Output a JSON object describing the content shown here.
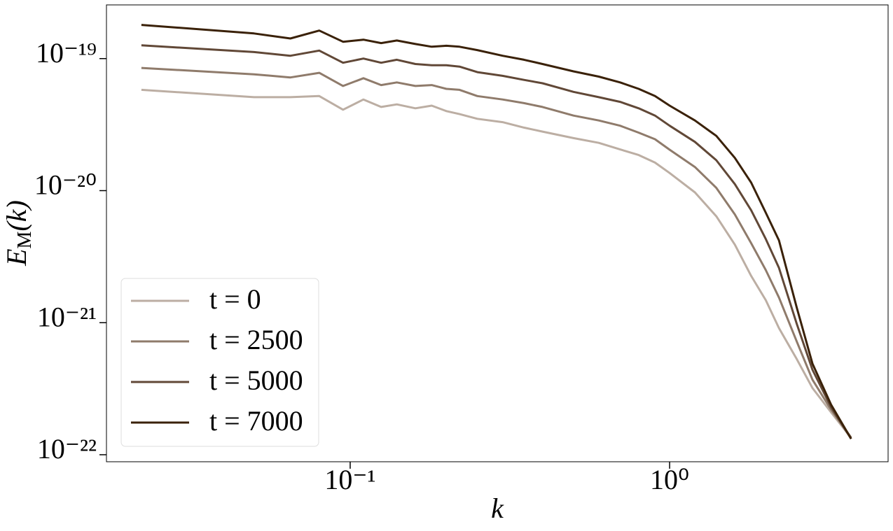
{
  "chart_data": {
    "type": "line",
    "x_label": "k",
    "y_label": "EM(k)",
    "x_scale": "log",
    "y_scale": "log",
    "xlim": [
      0.01726,
      4.83
    ],
    "ylim": [
      8.85e-23,
      2.55e-19
    ],
    "xticks": [
      {
        "value": 0.1,
        "label": "10⁻¹"
      },
      {
        "value": 1,
        "label": "10⁰"
      }
    ],
    "yticks": [
      {
        "value": 1e-22,
        "label": "10⁻²²"
      },
      {
        "value": 1e-21,
        "label": "10⁻²¹"
      },
      {
        "value": 1e-20,
        "label": "10⁻²⁰"
      },
      {
        "value": 1e-19,
        "label": "10⁻¹⁹"
      }
    ],
    "legend": "lower left",
    "x": [
      0.0222,
      0.05,
      0.065,
      0.08,
      0.095,
      0.11,
      0.125,
      0.14,
      0.16,
      0.18,
      0.2,
      0.22,
      0.25,
      0.3,
      0.35,
      0.4,
      0.5,
      0.6,
      0.7,
      0.8,
      0.9,
      1.0,
      1.2,
      1.4,
      1.6,
      1.8,
      2.0,
      2.2,
      2.5,
      2.8,
      3.2,
      3.7
    ],
    "series": [
      {
        "name": "t = 0",
        "color": "#bcaea3",
        "values": [
          5.8e-20,
          5.1e-20,
          5.1e-20,
          5.2e-20,
          4.1e-20,
          4.9e-20,
          4.3e-20,
          4.5e-20,
          4.2e-20,
          4.4e-20,
          4e-20,
          3.8e-20,
          3.5e-20,
          3.3e-20,
          3e-20,
          2.8e-20,
          2.5e-20,
          2.3e-20,
          2.05e-20,
          1.86e-20,
          1.63e-20,
          1.36e-20,
          9.7e-21,
          6.4e-21,
          3.9e-21,
          2.26e-21,
          1.48e-21,
          9.1e-22,
          5.3e-22,
          3.2e-22,
          2.1e-22,
          1.34e-22
        ]
      },
      {
        "name": "t = 2500",
        "color": "#8f7b6b",
        "values": [
          8.5e-20,
          7.6e-20,
          7.2e-20,
          7.8e-20,
          6.2e-20,
          7.1e-20,
          6.3e-20,
          6.6e-20,
          6.2e-20,
          6.3e-20,
          5.9e-20,
          5.8e-20,
          5.2e-20,
          4.9e-20,
          4.6e-20,
          4.3e-20,
          3.7e-20,
          3.4e-20,
          3.1e-20,
          2.75e-20,
          2.45e-20,
          2.04e-20,
          1.51e-20,
          1.05e-20,
          6.6e-21,
          4e-21,
          2.5e-21,
          1.55e-21,
          7.2e-22,
          3.7e-22,
          2.2e-22,
          1.35e-22
        ]
      },
      {
        "name": "t = 5000",
        "color": "#614837",
        "values": [
          1.26e-19,
          1.12e-19,
          1.05e-19,
          1.15e-19,
          9.3e-20,
          1e-19,
          9.3e-20,
          9.8e-20,
          9.1e-20,
          8.9e-20,
          8.9e-20,
          8.7e-20,
          7.9e-20,
          7.4e-20,
          6.9e-20,
          6.5e-20,
          5.6e-20,
          5.1e-20,
          4.7e-20,
          4.2e-20,
          3.7e-20,
          3.1e-20,
          2.34e-20,
          1.7e-20,
          1.12e-20,
          7.1e-21,
          4.3e-21,
          2.6e-21,
          9.8e-22,
          4.4e-22,
          2.3e-22,
          1.32e-22
        ]
      },
      {
        "name": "t = 7000",
        "color": "#3a2108",
        "values": [
          1.8e-19,
          1.55e-19,
          1.42e-19,
          1.63e-19,
          1.34e-19,
          1.39e-19,
          1.31e-19,
          1.37e-19,
          1.29e-19,
          1.23e-19,
          1.25e-19,
          1.23e-19,
          1.16e-19,
          1.05e-19,
          9.8e-20,
          9.1e-20,
          8e-20,
          7.3e-20,
          6.6e-20,
          5.9e-20,
          5.2e-20,
          4.4e-20,
          3.4e-20,
          2.6e-20,
          1.77e-20,
          1.15e-20,
          6.8e-21,
          4.2e-21,
          1.3e-21,
          4.9e-22,
          2.4e-22,
          1.32e-22
        ]
      }
    ]
  }
}
